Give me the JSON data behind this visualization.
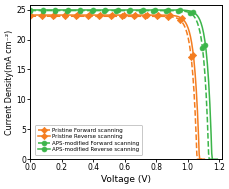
{
  "title": "",
  "xlabel": "Voltage (V)",
  "ylabel": "Current Density(mA cm⁻²)",
  "xlim": [
    0.0,
    1.22
  ],
  "ylim": [
    0.0,
    25.8
  ],
  "xticks": [
    0.0,
    0.2,
    0.4,
    0.6,
    0.8,
    1.0,
    1.2
  ],
  "yticks": [
    0,
    5,
    10,
    15,
    20,
    25
  ],
  "curves": [
    {
      "label": "Pristine Forward scanning",
      "Jsc": 23.9,
      "Voc": 1.06,
      "n": 1.15,
      "color": "#f47d20",
      "linestyle": "--",
      "marker": "D",
      "markersize": 3.2
    },
    {
      "label": "Pristine Reverse scanning",
      "Jsc": 24.1,
      "Voc": 1.075,
      "n": 1.15,
      "color": "#f47d20",
      "linestyle": "-",
      "marker": "D",
      "markersize": 3.2
    },
    {
      "label": "APS-modified Forward scanning",
      "Jsc": 24.85,
      "Voc": 1.135,
      "n": 1.12,
      "color": "#3cb54a",
      "linestyle": "--",
      "marker": "o",
      "markersize": 3.5
    },
    {
      "label": "APS-modified Reverse scanning",
      "Jsc": 24.95,
      "Voc": 1.155,
      "n": 1.1,
      "color": "#3cb54a",
      "linestyle": "-",
      "marker": "o",
      "markersize": 3.5
    }
  ],
  "linewidth": 1.1,
  "n_points": 300,
  "markevery": 20,
  "background_color": "#ffffff"
}
